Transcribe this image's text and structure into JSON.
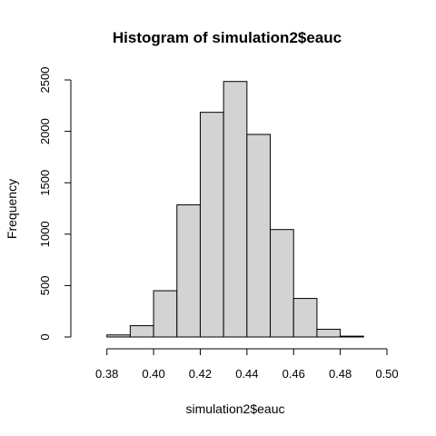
{
  "chart_data": {
    "type": "bar",
    "subtype": "histogram",
    "title": "Histogram of simulation2$eauc",
    "xlabel": "simulation2$eauc",
    "ylabel": "Frequency",
    "bin_edges": [
      0.38,
      0.39,
      0.4,
      0.41,
      0.42,
      0.43,
      0.44,
      0.45,
      0.46,
      0.47,
      0.48,
      0.49
    ],
    "values": [
      20,
      110,
      450,
      1285,
      2185,
      2485,
      1970,
      1045,
      375,
      75,
      8
    ],
    "xticks": [
      "0.38",
      "0.40",
      "0.42",
      "0.44",
      "0.46",
      "0.48",
      "0.50"
    ],
    "yticks": [
      "0",
      "500",
      "1000",
      "1500",
      "2000",
      "2500"
    ],
    "xlim": [
      0.37,
      0.5
    ],
    "ylim": [
      0,
      2500
    ],
    "bar_color": "#d3d3d3",
    "edge_color": "#000000",
    "grid": false,
    "legend": "none"
  }
}
